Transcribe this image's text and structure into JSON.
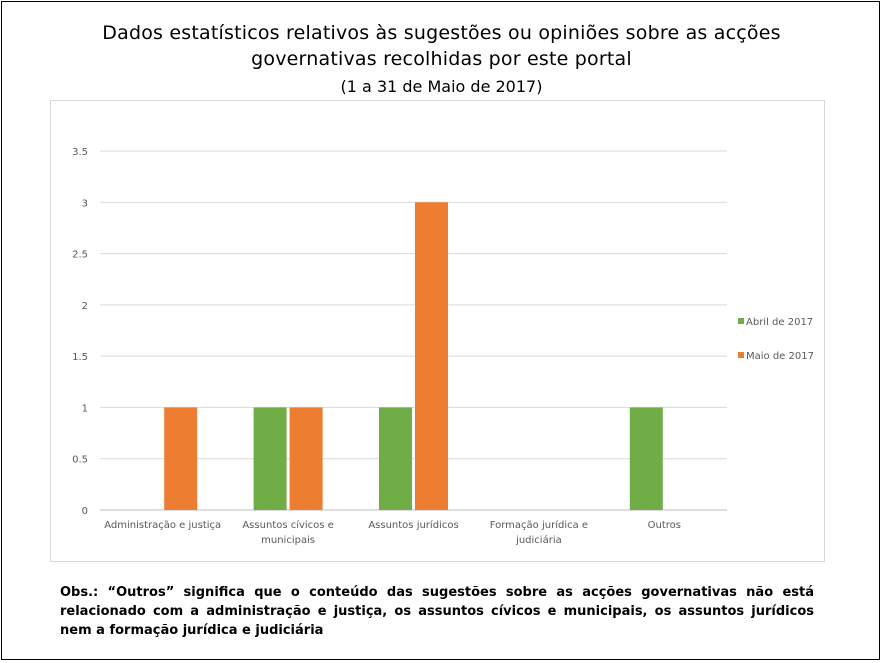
{
  "title_lines": [
    "Dados estatísticos relativos às sugestões ou opiniões sobre as acções",
    "governativas recolhidas por este portal"
  ],
  "subtitle": "(1 a 31 de Maio de 2017)",
  "note": "Obs.: “Outros” significa que o conteúdo das sugestões sobre as acções governativas não está relacionado com a administração e justiça, os assuntos cívicos e municipais, os assuntos jurídicos nem a formação jurídica e judiciária",
  "chart_data": {
    "type": "bar",
    "title": "Dados estatísticos relativos às sugestões ou opiniões sobre as acções governativas recolhidas por este portal",
    "subtitle": "(1 a 31 de Maio de 2017)",
    "categories": [
      [
        "Administração e justiça"
      ],
      [
        "Assuntos cívicos e",
        "municipais"
      ],
      [
        "Assuntos jurídicos"
      ],
      [
        "Formação jurídica e",
        "judiciária"
      ],
      [
        "Outros"
      ]
    ],
    "series": [
      {
        "name": "Abril de 2017",
        "color": "#70ad47",
        "values": [
          0,
          1,
          1,
          0,
          1
        ]
      },
      {
        "name": "Maio de 2017",
        "color": "#ed7d31",
        "values": [
          1,
          1,
          3,
          0,
          0
        ]
      }
    ],
    "ylim": [
      0,
      3.5
    ],
    "yticks": [
      "0",
      "0.5",
      "1",
      "1.5",
      "2",
      "2.5",
      "3",
      "3.5"
    ],
    "grid": true,
    "legend": "right"
  }
}
